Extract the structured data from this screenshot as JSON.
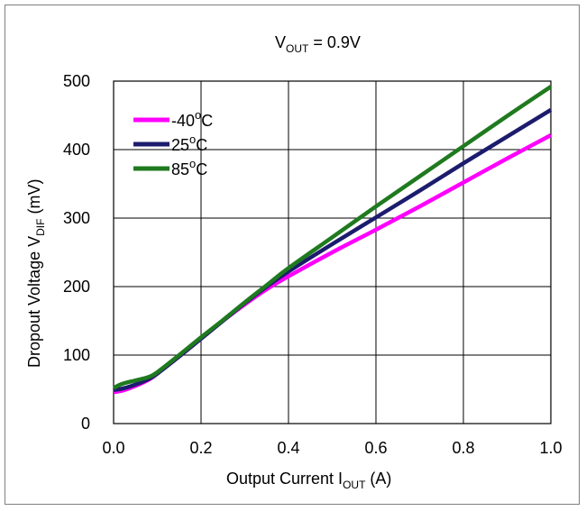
{
  "chart_data": {
    "type": "line",
    "title": {
      "main": "V",
      "sub": "OUT",
      "suffix": " = 0.9V"
    },
    "xlabel": {
      "main": "Output Current I",
      "sub": "OUT",
      "suffix": " (A)"
    },
    "ylabel": {
      "main": "Dropout Voltage V",
      "sub": "DIF",
      "suffix": " (mV)"
    },
    "xlim": [
      0,
      1.0
    ],
    "ylim": [
      0,
      500
    ],
    "xticks": [
      "0.0",
      "0.2",
      "0.4",
      "0.6",
      "0.8",
      "1.0"
    ],
    "yticks": [
      "0",
      "100",
      "200",
      "300",
      "400",
      "500"
    ],
    "grid": true,
    "legend_position": "top-left",
    "series": [
      {
        "name": "-40°C",
        "label_main": "-40",
        "label_sup": "o",
        "label_unit": "C",
        "color": "#ff00ff",
        "x": [
          0,
          0.02,
          0.05,
          0.08,
          0.1,
          0.15,
          0.2,
          0.25,
          0.3,
          0.35,
          0.4,
          0.5,
          0.6,
          0.7,
          0.8,
          0.9,
          1.0
        ],
        "y": [
          46,
          48,
          55,
          64,
          73,
          98,
          124,
          150,
          174,
          196,
          215,
          250,
          283,
          317,
          352,
          387,
          421
        ]
      },
      {
        "name": "25°C",
        "label_main": "25",
        "label_sup": "o",
        "label_unit": "C",
        "color": "#1c1c6e",
        "x": [
          0,
          0.02,
          0.05,
          0.08,
          0.1,
          0.15,
          0.2,
          0.25,
          0.3,
          0.35,
          0.4,
          0.5,
          0.6,
          0.7,
          0.8,
          0.9,
          1.0
        ],
        "y": [
          49,
          51,
          57,
          65,
          73,
          98,
          124,
          150,
          176,
          200,
          222,
          262,
          301,
          340,
          380,
          419,
          458
        ]
      },
      {
        "name": "85°C",
        "label_main": "85",
        "label_sup": "o",
        "label_unit": "C",
        "color": "#1f7a1f",
        "x": [
          0,
          0.02,
          0.05,
          0.08,
          0.1,
          0.15,
          0.2,
          0.25,
          0.3,
          0.35,
          0.4,
          0.5,
          0.6,
          0.7,
          0.8,
          0.9,
          1.0
        ],
        "y": [
          52,
          58,
          63,
          68,
          75,
          100,
          126,
          151,
          177,
          202,
          227,
          272,
          317,
          361,
          405,
          449,
          492
        ]
      }
    ]
  }
}
